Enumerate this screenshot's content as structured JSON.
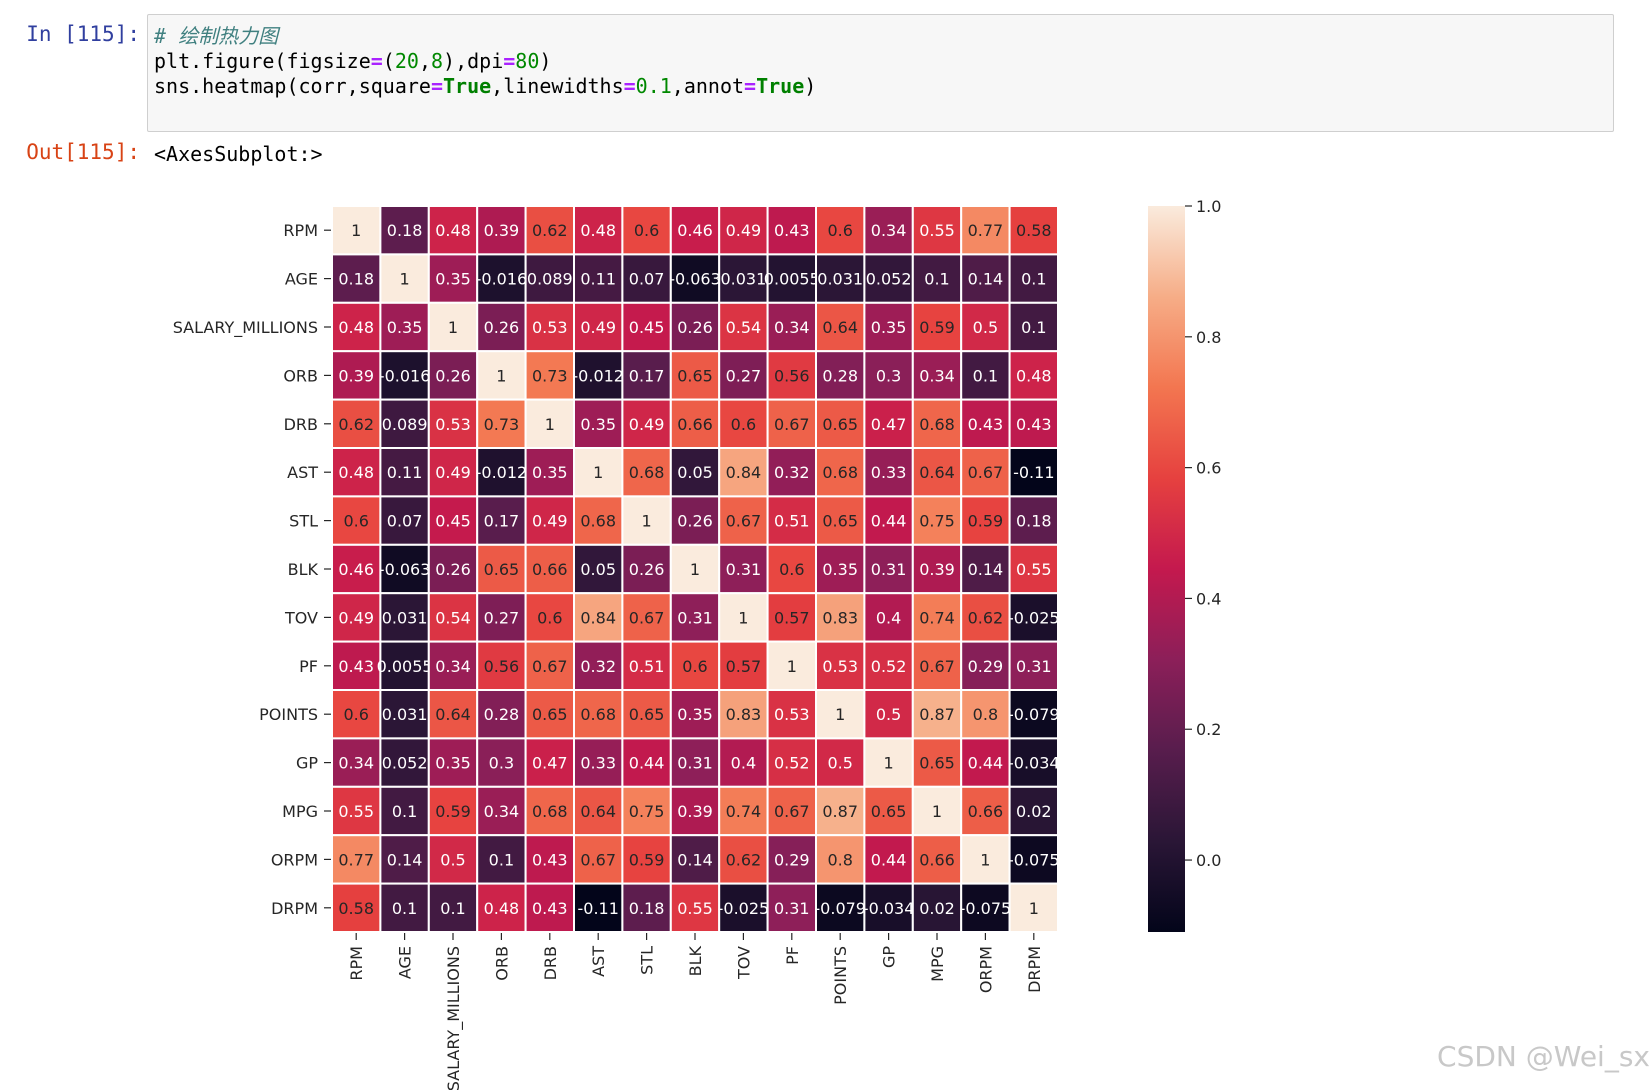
{
  "cell_in": {
    "prompt": "In [115]:",
    "comment": "# 绘制热力图",
    "line2": {
      "a": "plt.figure(figsize",
      "op1": "=",
      "b": "(",
      "n1": "20",
      "c": ",",
      "n2": "8",
      "d": "),dpi",
      "op2": "=",
      "n3": "80",
      "e": ")"
    },
    "line3": {
      "a": "sns.heatmap(corr,square",
      "op1": "=",
      "k1": "True",
      "b": ",linewidths",
      "op2": "=",
      "n1": "0.1",
      "c": ",annot",
      "op3": "=",
      "k2": "True",
      "d": ")"
    }
  },
  "cell_out": {
    "prompt": "Out[115]:",
    "text": "<AxesSubplot:>"
  },
  "watermark": "CSDN @Wei_sx",
  "colors": {
    "colormap": "rocket",
    "grid_line": "#ffffff",
    "text_dark": "#262626",
    "text_light": "#ffffff"
  },
  "chart_data": {
    "type": "heatmap",
    "title": "",
    "xlabel": "",
    "ylabel": "",
    "labels": [
      "RPM",
      "AGE",
      "SALARY_MILLIONS",
      "ORB",
      "DRB",
      "AST",
      "STL",
      "BLK",
      "TOV",
      "PF",
      "POINTS",
      "GP",
      "MPG",
      "ORPM",
      "DRPM"
    ],
    "values": [
      [
        1,
        0.18,
        0.48,
        0.39,
        0.62,
        0.48,
        0.6,
        0.46,
        0.49,
        0.43,
        0.6,
        0.34,
        0.55,
        0.77,
        0.58
      ],
      [
        0.18,
        1,
        0.35,
        -0.016,
        0.089,
        0.11,
        0.07,
        -0.063,
        0.031,
        0.0055,
        0.031,
        0.052,
        0.1,
        0.14,
        0.1
      ],
      [
        0.48,
        0.35,
        1,
        0.26,
        0.53,
        0.49,
        0.45,
        0.26,
        0.54,
        0.34,
        0.64,
        0.35,
        0.59,
        0.5,
        0.1
      ],
      [
        0.39,
        -0.016,
        0.26,
        1,
        0.73,
        -0.012,
        0.17,
        0.65,
        0.27,
        0.56,
        0.28,
        0.3,
        0.34,
        0.1,
        0.48
      ],
      [
        0.62,
        0.089,
        0.53,
        0.73,
        1,
        0.35,
        0.49,
        0.66,
        0.6,
        0.67,
        0.65,
        0.47,
        0.68,
        0.43,
        0.43
      ],
      [
        0.48,
        0.11,
        0.49,
        -0.012,
        0.35,
        1,
        0.68,
        0.05,
        0.84,
        0.32,
        0.68,
        0.33,
        0.64,
        0.67,
        -0.11
      ],
      [
        0.6,
        0.07,
        0.45,
        0.17,
        0.49,
        0.68,
        1,
        0.26,
        0.67,
        0.51,
        0.65,
        0.44,
        0.75,
        0.59,
        0.18
      ],
      [
        0.46,
        -0.063,
        0.26,
        0.65,
        0.66,
        0.05,
        0.26,
        1,
        0.31,
        0.6,
        0.35,
        0.31,
        0.39,
        0.14,
        0.55
      ],
      [
        0.49,
        0.031,
        0.54,
        0.27,
        0.6,
        0.84,
        0.67,
        0.31,
        1,
        0.57,
        0.83,
        0.4,
        0.74,
        0.62,
        -0.025
      ],
      [
        0.43,
        0.0055,
        0.34,
        0.56,
        0.67,
        0.32,
        0.51,
        0.6,
        0.57,
        1,
        0.53,
        0.52,
        0.67,
        0.29,
        0.31
      ],
      [
        0.6,
        0.031,
        0.64,
        0.28,
        0.65,
        0.68,
        0.65,
        0.35,
        0.83,
        0.53,
        1,
        0.5,
        0.87,
        0.8,
        -0.079
      ],
      [
        0.34,
        0.052,
        0.35,
        0.3,
        0.47,
        0.33,
        0.44,
        0.31,
        0.4,
        0.52,
        0.5,
        1,
        0.65,
        0.44,
        -0.034
      ],
      [
        0.55,
        0.1,
        0.59,
        0.34,
        0.68,
        0.64,
        0.75,
        0.39,
        0.74,
        0.67,
        0.87,
        0.65,
        1,
        0.66,
        0.02
      ],
      [
        0.77,
        0.14,
        0.5,
        0.1,
        0.43,
        0.67,
        0.59,
        0.14,
        0.62,
        0.29,
        0.8,
        0.44,
        0.66,
        1,
        -0.075
      ],
      [
        0.58,
        0.1,
        0.1,
        0.48,
        0.43,
        -0.11,
        0.18,
        0.55,
        -0.025,
        0.31,
        -0.079,
        -0.034,
        0.02,
        -0.075,
        1
      ]
    ],
    "vmin": -0.11,
    "vmax": 1.0,
    "colorbar_ticks": [
      "1.0",
      "0.8",
      "0.6",
      "0.4",
      "0.2",
      "0.0"
    ],
    "colorbar_tick_values": [
      1.0,
      0.8,
      0.6,
      0.4,
      0.2,
      0.0
    ],
    "annotations": true,
    "grid": false
  }
}
